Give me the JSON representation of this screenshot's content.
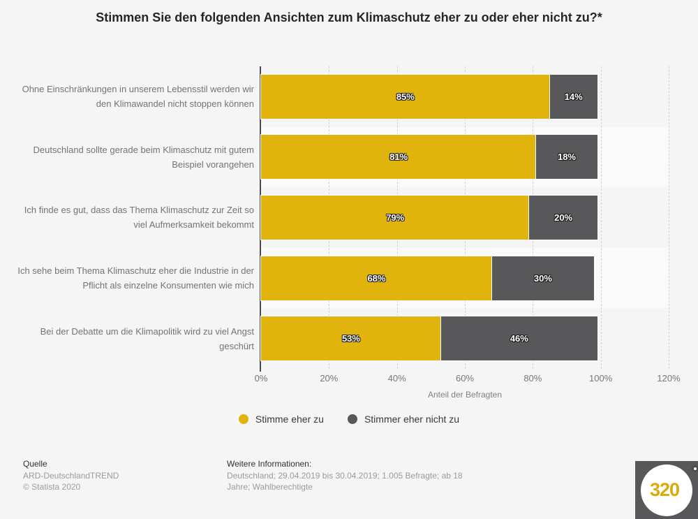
{
  "title": "Stimmen Sie den folgenden Ansichten zum Klimaschutz eher zu oder eher nicht zu?*",
  "chart_data": {
    "type": "bar",
    "orientation": "horizontal",
    "stacked": true,
    "title": "Stimmen Sie den folgenden Ansichten zum Klimaschutz eher zu oder eher nicht zu?*",
    "categories": [
      "Ohne Einschränkungen in unserem Lebensstil werden wir den Klimawandel nicht stoppen können",
      "Deutschland sollte gerade beim Klimaschutz mit gutem Beispiel vorangehen",
      "Ich finde es gut, dass das Thema Klimaschutz zur Zeit so viel Aufmerksamkeit bekommt",
      "Ich sehe beim Thema Klimaschutz eher die Industrie in der Pflicht als einzelne Konsumenten wie mich",
      "Bei der Debatte um die Klimapolitik wird zu viel Angst geschürt"
    ],
    "series": [
      {
        "name": "Stimme eher zu",
        "color": "#e0b40c",
        "values": [
          85,
          81,
          79,
          68,
          53
        ]
      },
      {
        "name": "Stimmer eher nicht zu",
        "color": "#58585a",
        "values": [
          14,
          18,
          20,
          30,
          46
        ]
      }
    ],
    "value_suffix": "%",
    "xlabel": "Anteil der Befragten",
    "ylabel": "",
    "xlim": [
      0,
      120
    ],
    "x_ticks": [
      "0%",
      "20%",
      "40%",
      "60%",
      "80%",
      "100%",
      "120%"
    ],
    "grid": "vertical-dashed",
    "legend_position": "bottom-center"
  },
  "legend": {
    "items": [
      {
        "label": "Stimme eher zu",
        "color": "#e0b40c"
      },
      {
        "label": "Stimmer eher nicht zu",
        "color": "#58585a"
      }
    ]
  },
  "footer": {
    "source_heading": "Quelle",
    "source_line1": "ARD-DeutschlandTREND",
    "source_line2": "© Statista 2020",
    "info_heading": "Weitere Informationen:",
    "info_text": "Deutschland; 29.04.2019 bis 30.04.2019; 1.005 Befragte; ab 18 Jahre; Wahlberechtigte"
  },
  "logo": {
    "text": "320",
    "degree_symbol": "°"
  },
  "colors": {
    "agree": "#e0b40c",
    "disagree": "#58585a",
    "background": "#f5f5f5",
    "row_stripe": "#fafafa",
    "axis_line": "#4a4a4a"
  }
}
